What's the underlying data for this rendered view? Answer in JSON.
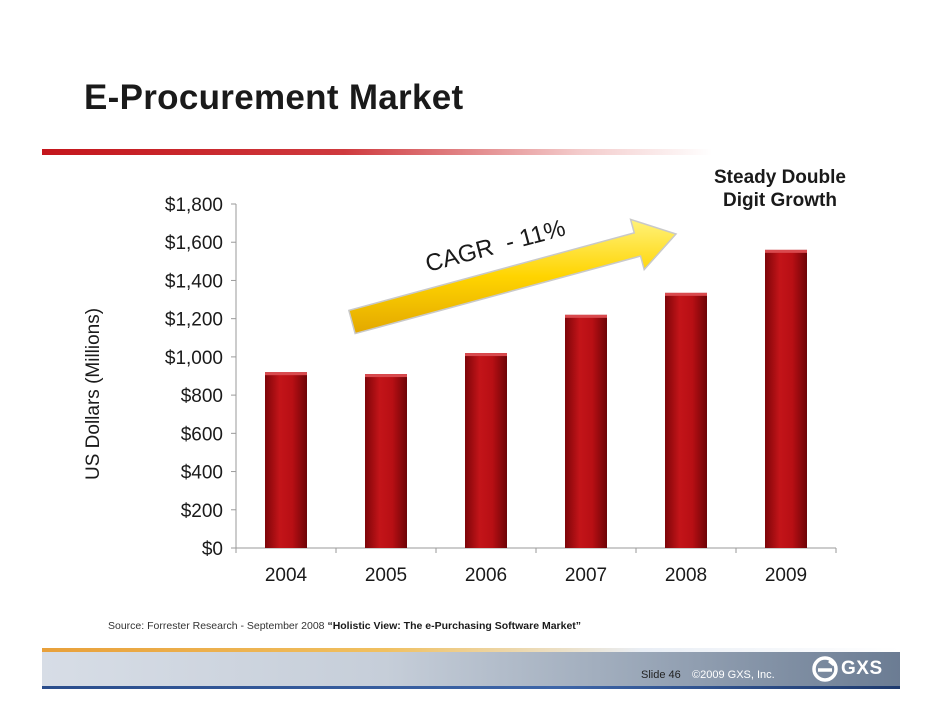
{
  "slide": {
    "title": "E-Procurement Market",
    "callout_line1": "Steady Double",
    "callout_line2": "Digit Growth",
    "source_prefix": "Source: Forrester Research - September 2008 ",
    "source_title": "“Holistic View: The e-Purchasing Software Market”",
    "slide_number": "Slide 46",
    "copyright": "©2009 GXS, Inc.",
    "logo_text": "GXS"
  },
  "colors": {
    "bar": "#b10d12",
    "title_rule": "#c4161c",
    "arrow": "#ffd400"
  },
  "chart_data": {
    "type": "bar",
    "categories": [
      "2004",
      "2005",
      "2006",
      "2007",
      "2008",
      "2009"
    ],
    "values": [
      920,
      910,
      1020,
      1220,
      1335,
      1560
    ],
    "ylabel": "US Dollars (Millions)",
    "ylim": [
      0,
      1800
    ],
    "yticks": [
      0,
      200,
      400,
      600,
      800,
      1000,
      1200,
      1400,
      1600,
      1800
    ],
    "ytick_labels": [
      "$0",
      "$200",
      "$400",
      "$600",
      "$800",
      "$1,000",
      "$1,200",
      "$1,400",
      "$1,600",
      "$1,800"
    ],
    "grid": false,
    "annotation": "CAGR  - 11%"
  }
}
